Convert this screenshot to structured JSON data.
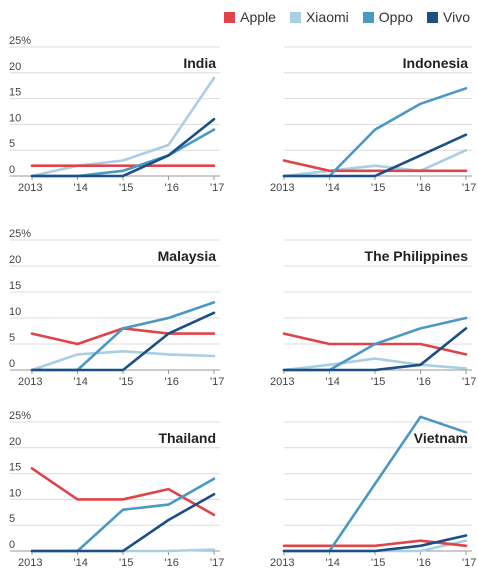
{
  "legend": [
    {
      "name": "Apple",
      "color": "#e0434a"
    },
    {
      "name": "Xiaomi",
      "color": "#a9cfe2"
    },
    {
      "name": "Oppo",
      "color": "#4a98c4"
    },
    {
      "name": "Vivo",
      "color": "#1b4f86"
    }
  ],
  "chart_data": [
    {
      "type": "line",
      "title": "India",
      "x": [
        "2013",
        "'14",
        "'15",
        "'16",
        "'17"
      ],
      "ylim": [
        0,
        25
      ],
      "yticks": [
        "25%",
        "20",
        "15",
        "10",
        "5",
        "0"
      ],
      "series": [
        {
          "name": "Apple",
          "values": [
            2,
            2,
            2,
            2,
            2
          ]
        },
        {
          "name": "Xiaomi",
          "values": [
            0,
            2,
            3,
            6,
            19
          ]
        },
        {
          "name": "Oppo",
          "values": [
            0,
            0,
            1,
            4,
            9
          ]
        },
        {
          "name": "Vivo",
          "values": [
            0,
            0,
            0,
            4,
            11
          ]
        }
      ]
    },
    {
      "type": "line",
      "title": "Indonesia",
      "x": [
        "2013",
        "'14",
        "'15",
        "'16",
        "'17"
      ],
      "ylim": [
        0,
        25
      ],
      "yticks": [],
      "series": [
        {
          "name": "Apple",
          "values": [
            3,
            1,
            1,
            1,
            1
          ]
        },
        {
          "name": "Xiaomi",
          "values": [
            0,
            1,
            2,
            1,
            5
          ]
        },
        {
          "name": "Oppo",
          "values": [
            0,
            0,
            9,
            14,
            17
          ]
        },
        {
          "name": "Vivo",
          "values": [
            0,
            0,
            0,
            4,
            8
          ]
        }
      ]
    },
    {
      "type": "line",
      "title": "Malaysia",
      "x": [
        "2013",
        "'14",
        "'15",
        "'16",
        "'17"
      ],
      "ylim": [
        0,
        25
      ],
      "yticks": [
        "25%",
        "20",
        "15",
        "10",
        "5",
        "0"
      ],
      "series": [
        {
          "name": "Apple",
          "values": [
            7,
            5,
            8,
            7,
            7
          ]
        },
        {
          "name": "Xiaomi",
          "values": [
            0,
            3,
            3.6,
            3,
            2.7
          ]
        },
        {
          "name": "Oppo",
          "values": [
            0,
            0,
            8,
            10,
            13
          ]
        },
        {
          "name": "Vivo",
          "values": [
            0,
            0,
            0,
            7,
            11
          ]
        }
      ]
    },
    {
      "type": "line",
      "title": "The Philippines",
      "x": [
        "2013",
        "'14",
        "'15",
        "'16",
        "'17"
      ],
      "ylim": [
        0,
        25
      ],
      "yticks": [],
      "series": [
        {
          "name": "Apple",
          "values": [
            7,
            5,
            5,
            5,
            3
          ]
        },
        {
          "name": "Xiaomi",
          "values": [
            0,
            1,
            2.2,
            1,
            0.3
          ]
        },
        {
          "name": "Oppo",
          "values": [
            0,
            0,
            5,
            8,
            10
          ]
        },
        {
          "name": "Vivo",
          "values": [
            0,
            0,
            0,
            1,
            8
          ]
        }
      ]
    },
    {
      "type": "line",
      "title": "Thailand",
      "x": [
        "2013",
        "'14",
        "'15",
        "'16",
        "'17"
      ],
      "ylim": [
        0,
        25
      ],
      "yticks": [
        "25%",
        "20",
        "15",
        "10",
        "5",
        "0"
      ],
      "series": [
        {
          "name": "Apple",
          "values": [
            16,
            10,
            10,
            12,
            7
          ]
        },
        {
          "name": "Xiaomi",
          "values": [
            0,
            0,
            0,
            0,
            0.3
          ]
        },
        {
          "name": "Oppo",
          "values": [
            0,
            0,
            8,
            9,
            14
          ]
        },
        {
          "name": "Vivo",
          "values": [
            0,
            0,
            0,
            6,
            11
          ]
        }
      ]
    },
    {
      "type": "line",
      "title": "Vietnam",
      "x": [
        "2013",
        "'14",
        "'15",
        "'16",
        "'17"
      ],
      "ylim": [
        0,
        25
      ],
      "yticks": [],
      "series": [
        {
          "name": "Apple",
          "values": [
            1,
            1,
            1,
            2,
            1
          ]
        },
        {
          "name": "Xiaomi",
          "values": [
            0,
            0,
            0,
            0,
            2
          ]
        },
        {
          "name": "Oppo",
          "values": [
            0,
            0,
            13,
            26,
            23
          ]
        },
        {
          "name": "Vivo",
          "values": [
            0,
            0,
            0,
            1,
            3
          ]
        }
      ]
    }
  ]
}
